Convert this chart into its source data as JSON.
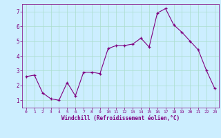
{
  "x": [
    0,
    1,
    2,
    3,
    4,
    5,
    6,
    7,
    8,
    9,
    10,
    11,
    12,
    13,
    14,
    15,
    16,
    17,
    18,
    19,
    20,
    21,
    22,
    23
  ],
  "y": [
    2.6,
    2.7,
    1.5,
    1.1,
    1.0,
    2.2,
    1.3,
    2.9,
    2.9,
    2.8,
    4.5,
    4.7,
    4.7,
    4.8,
    5.2,
    4.6,
    6.9,
    7.2,
    6.1,
    5.6,
    5.0,
    4.4,
    3.0,
    1.8
  ],
  "line_color": "#800080",
  "marker": "+",
  "marker_color": "#800080",
  "bg_color": "#cceeff",
  "grid_color": "#aaddcc",
  "xlabel": "Windchill (Refroidissement éolien,°C)",
  "xlabel_color": "#800080",
  "tick_color": "#800080",
  "ylim": [
    0.5,
    7.5
  ],
  "xlim": [
    -0.5,
    23.5
  ],
  "yticks": [
    1,
    2,
    3,
    4,
    5,
    6,
    7
  ],
  "xticks": [
    0,
    1,
    2,
    3,
    4,
    5,
    6,
    7,
    8,
    9,
    10,
    11,
    12,
    13,
    14,
    15,
    16,
    17,
    18,
    19,
    20,
    21,
    22,
    23
  ],
  "xlabel_fontsize": 5.5,
  "xtick_fontsize": 4.5,
  "ytick_fontsize": 5.5
}
